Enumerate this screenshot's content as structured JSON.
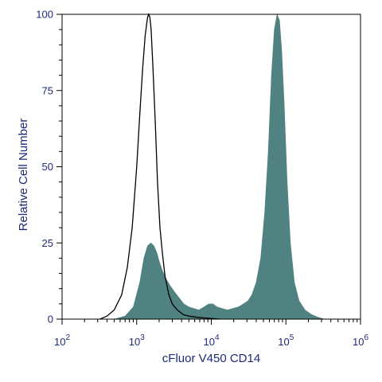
{
  "chart_data": {
    "type": "area",
    "title": "",
    "xlabel": "cFluor V450 CD14",
    "ylabel": "Relative Cell Number",
    "x_scale": "log10",
    "xlim": [
      100,
      1000000
    ],
    "ylim": [
      0,
      100
    ],
    "x_ticks": [
      {
        "base": "10",
        "exp": "2",
        "value": 100
      },
      {
        "base": "10",
        "exp": "3",
        "value": 1000
      },
      {
        "base": "10",
        "exp": "4",
        "value": 10000
      },
      {
        "base": "10",
        "exp": "5",
        "value": 100000
      },
      {
        "base": "10",
        "exp": "6",
        "value": 1000000
      }
    ],
    "y_ticks": [
      "0",
      "25",
      "50",
      "75",
      "100"
    ],
    "grid": false,
    "legend": "none",
    "series": [
      {
        "style": "outline",
        "color": "#000000",
        "x": [
          320,
          400,
          500,
          630,
          750,
          870,
          1000,
          1100,
          1200,
          1300,
          1400,
          1450,
          1500,
          1560,
          1650,
          1780,
          1900,
          2050,
          2200,
          2400,
          2700,
          3000,
          3500,
          4200,
          5000,
          6500,
          9000,
          13000
        ],
        "y": [
          0,
          1,
          3,
          8,
          17,
          30,
          50,
          67,
          82,
          93,
          99,
          100,
          99,
          95,
          83,
          64,
          45,
          30,
          22,
          14,
          8,
          5,
          3,
          1.5,
          1,
          0.6,
          0.3,
          0
        ]
      },
      {
        "style": "filled",
        "color": "#4f8280",
        "x": [
          500,
          700,
          900,
          1100,
          1250,
          1400,
          1550,
          1700,
          1850,
          2000,
          2200,
          2500,
          2800,
          3200,
          3700,
          4300,
          5000,
          5800,
          6800,
          8000,
          9200,
          10500,
          12000,
          14000,
          16500,
          19500,
          23000,
          27000,
          31000,
          35000,
          40000,
          46000,
          52000,
          58000,
          64000,
          70000,
          76000,
          82000,
          88000,
          95000,
          104000,
          115000,
          130000,
          150000,
          180000,
          220000,
          270000,
          330000
        ],
        "y": [
          0,
          1,
          4,
          12,
          20,
          24,
          25,
          24,
          22,
          19,
          16,
          13,
          11,
          9,
          7,
          5,
          4,
          3.5,
          3,
          4,
          5,
          5,
          4,
          3.5,
          3,
          3.5,
          4,
          5,
          6,
          8,
          12,
          20,
          35,
          55,
          80,
          95,
          100,
          98,
          88,
          70,
          45,
          25,
          12,
          6,
          3,
          1.5,
          0.6,
          0
        ]
      }
    ]
  }
}
